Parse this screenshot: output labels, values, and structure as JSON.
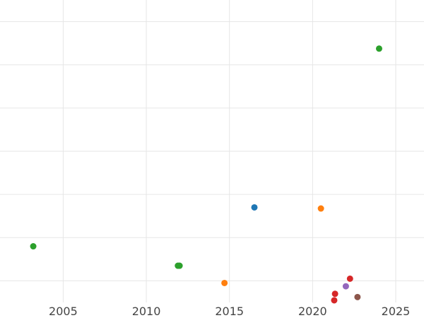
{
  "chart_data": {
    "type": "scatter",
    "title": "",
    "xlabel": "",
    "ylabel": "",
    "xlim": [
      2001.2,
      2026.7
    ],
    "ylim": [
      0,
      14
    ],
    "grid": true,
    "x_ticks": [
      2005,
      2010,
      2015,
      2020,
      2025
    ],
    "y_gridlines": [
      1,
      3,
      5,
      7,
      9,
      11,
      13
    ],
    "points": [
      {
        "x": 2003.2,
        "y": 2.6,
        "color": "#2ca02c"
      },
      {
        "x": 2011.9,
        "y": 1.7,
        "color": "#2ca02c"
      },
      {
        "x": 2012.0,
        "y": 1.7,
        "color": "#2ca02c"
      },
      {
        "x": 2014.7,
        "y": 0.9,
        "color": "#ff7f0e"
      },
      {
        "x": 2016.5,
        "y": 4.4,
        "color": "#1f77b4"
      },
      {
        "x": 2020.5,
        "y": 4.35,
        "color": "#ff7f0e"
      },
      {
        "x": 2021.3,
        "y": 0.1,
        "color": "#d62728"
      },
      {
        "x": 2021.35,
        "y": 0.4,
        "color": "#d62728"
      },
      {
        "x": 2022.0,
        "y": 0.75,
        "color": "#9467bd"
      },
      {
        "x": 2022.25,
        "y": 1.1,
        "color": "#d62728"
      },
      {
        "x": 2022.7,
        "y": 0.25,
        "color": "#8c564b"
      },
      {
        "x": 2024.0,
        "y": 11.75,
        "color": "#2ca02c"
      }
    ]
  }
}
